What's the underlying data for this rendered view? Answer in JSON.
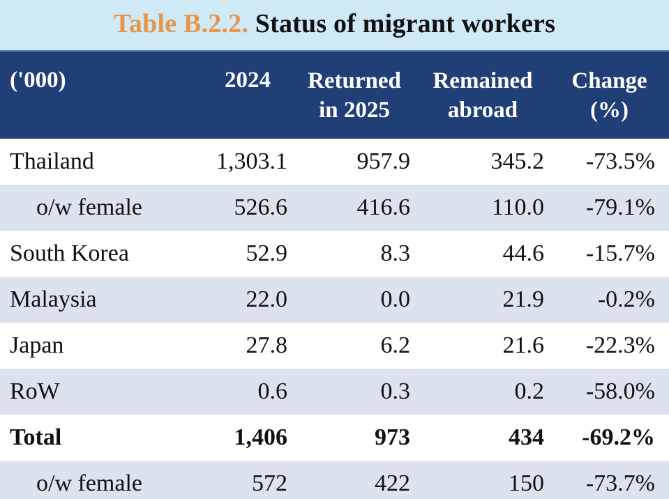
{
  "title": {
    "label": "Table B.2.2.",
    "text": "Status of migrant workers"
  },
  "header": {
    "unit": "('000)",
    "col_2024": "2024",
    "col_returned_1": "Returned",
    "col_returned_2": "in 2025",
    "col_remained_1": "Remained",
    "col_remained_2": "abroad",
    "col_change_1": "Change",
    "col_change_2": "(%)"
  },
  "rows": [
    {
      "label": "Thailand",
      "y2024": "1,303.1",
      "returned": "957.9",
      "remained": "345.2",
      "change": "-73.5%"
    },
    {
      "label": "o/w female",
      "y2024": "526.6",
      "returned": "416.6",
      "remained": "110.0",
      "change": "-79.1%"
    },
    {
      "label": "South Korea",
      "y2024": "52.9",
      "returned": "8.3",
      "remained": "44.6",
      "change": "-15.7%"
    },
    {
      "label": "Malaysia",
      "y2024": "22.0",
      "returned": "0.0",
      "remained": "21.9",
      "change": "-0.2%"
    },
    {
      "label": "Japan",
      "y2024": "27.8",
      "returned": "6.2",
      "remained": "21.6",
      "change": "-22.3%"
    },
    {
      "label": "RoW",
      "y2024": "0.6",
      "returned": "0.3",
      "remained": "0.2",
      "change": "-58.0%"
    },
    {
      "label": "Total",
      "y2024": "1,406",
      "returned": "973",
      "remained": "434",
      "change": "-69.2%"
    },
    {
      "label": "o/w female",
      "y2024": "572",
      "returned": "422",
      "remained": "150",
      "change": "-73.7%"
    }
  ],
  "colors": {
    "title_label": "#e8954a",
    "header_bg": "#203f77",
    "page_bg": "#cfe9f7",
    "row_alt": "#dde3ee"
  }
}
